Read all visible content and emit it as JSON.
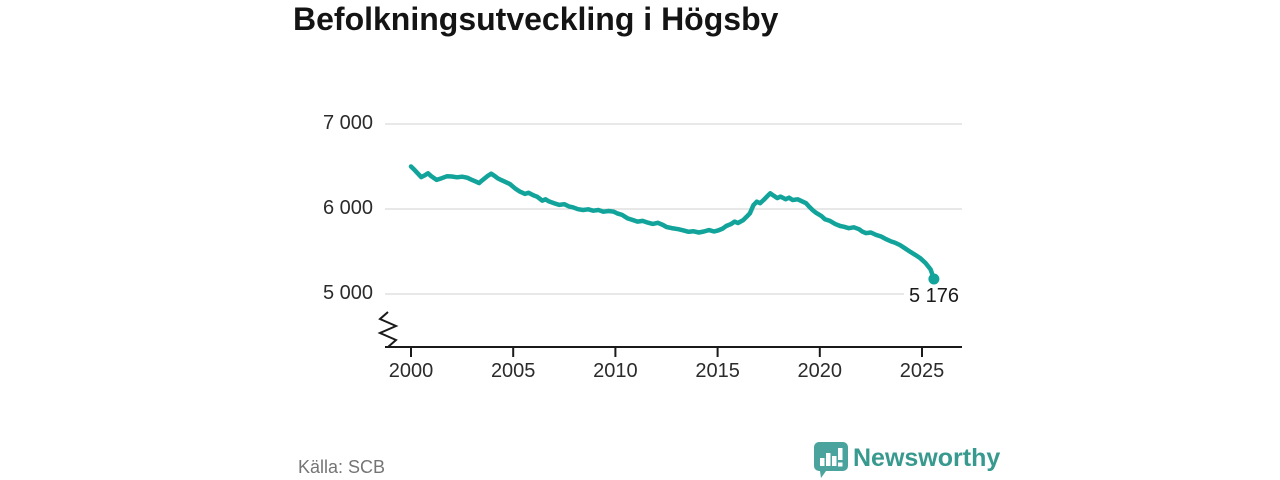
{
  "title": "Befolkningsutveckling i Högsby",
  "footer": {
    "source": "Källa: SCB",
    "brand": "Newsworthy"
  },
  "colors": {
    "line": "#12a49b",
    "end_dot": "#12a49b",
    "grid": "#d9d9d9",
    "axis": "#1a1a1a",
    "tick_label": "#2b2b2b",
    "source_text": "#757575",
    "brand_text": "#38998f",
    "logo_bubble": "#4aa39c"
  },
  "chart_data": {
    "type": "line",
    "title": "Befolkningsutveckling i Högsby",
    "xlabel": "",
    "ylabel": "",
    "legend": "none",
    "grid": "horizontal",
    "axis_break_bottom": true,
    "xlim": [
      1998.7,
      2026.9
    ],
    "ylim_visible": [
      4800,
      7000
    ],
    "x_ticks": [
      {
        "year": 2000,
        "label": "2000"
      },
      {
        "year": 2005,
        "label": "2005"
      },
      {
        "year": 2010,
        "label": "2010"
      },
      {
        "year": 2015,
        "label": "2015"
      },
      {
        "year": 2020,
        "label": "2020"
      },
      {
        "year": 2025,
        "label": "2025"
      }
    ],
    "y_ticks": [
      {
        "value": 7000,
        "label": "7 000"
      },
      {
        "value": 6000,
        "label": "6 000"
      },
      {
        "value": 5000,
        "label": "5 000"
      }
    ],
    "end_label": "5 176",
    "end_value": 5176,
    "series": [
      {
        "name": "Befolkning i Högsby",
        "points": [
          [
            2000.0,
            6500
          ],
          [
            2000.17,
            6460
          ],
          [
            2000.33,
            6420
          ],
          [
            2000.5,
            6375
          ],
          [
            2000.67,
            6395
          ],
          [
            2000.83,
            6420
          ],
          [
            2001.0,
            6385
          ],
          [
            2001.25,
            6342
          ],
          [
            2001.5,
            6362
          ],
          [
            2001.75,
            6385
          ],
          [
            2002.0,
            6382
          ],
          [
            2002.25,
            6373
          ],
          [
            2002.5,
            6380
          ],
          [
            2002.75,
            6368
          ],
          [
            2003.0,
            6340
          ],
          [
            2003.17,
            6322
          ],
          [
            2003.33,
            6305
          ],
          [
            2003.5,
            6340
          ],
          [
            2003.75,
            6388
          ],
          [
            2003.92,
            6415
          ],
          [
            2004.08,
            6390
          ],
          [
            2004.25,
            6360
          ],
          [
            2004.42,
            6340
          ],
          [
            2004.58,
            6322
          ],
          [
            2004.83,
            6295
          ],
          [
            2005.08,
            6245
          ],
          [
            2005.33,
            6205
          ],
          [
            2005.58,
            6178
          ],
          [
            2005.75,
            6192
          ],
          [
            2006.0,
            6160
          ],
          [
            2006.17,
            6145
          ],
          [
            2006.33,
            6115
          ],
          [
            2006.42,
            6098
          ],
          [
            2006.58,
            6114
          ],
          [
            2006.75,
            6090
          ],
          [
            2007.0,
            6068
          ],
          [
            2007.25,
            6048
          ],
          [
            2007.5,
            6056
          ],
          [
            2007.75,
            6028
          ],
          [
            2007.92,
            6020
          ],
          [
            2008.17,
            5998
          ],
          [
            2008.42,
            5988
          ],
          [
            2008.67,
            5996
          ],
          [
            2008.92,
            5980
          ],
          [
            2009.17,
            5988
          ],
          [
            2009.42,
            5968
          ],
          [
            2009.67,
            5976
          ],
          [
            2009.92,
            5968
          ],
          [
            2010.08,
            5950
          ],
          [
            2010.33,
            5930
          ],
          [
            2010.58,
            5892
          ],
          [
            2010.83,
            5872
          ],
          [
            2011.08,
            5852
          ],
          [
            2011.33,
            5860
          ],
          [
            2011.58,
            5840
          ],
          [
            2011.83,
            5825
          ],
          [
            2012.08,
            5838
          ],
          [
            2012.33,
            5812
          ],
          [
            2012.5,
            5788
          ],
          [
            2012.75,
            5775
          ],
          [
            2013.08,
            5762
          ],
          [
            2013.33,
            5748
          ],
          [
            2013.58,
            5732
          ],
          [
            2013.83,
            5738
          ],
          [
            2014.08,
            5724
          ],
          [
            2014.33,
            5735
          ],
          [
            2014.58,
            5752
          ],
          [
            2014.83,
            5735
          ],
          [
            2015.0,
            5746
          ],
          [
            2015.25,
            5770
          ],
          [
            2015.42,
            5800
          ],
          [
            2015.67,
            5825
          ],
          [
            2015.83,
            5852
          ],
          [
            2016.0,
            5835
          ],
          [
            2016.25,
            5870
          ],
          [
            2016.42,
            5908
          ],
          [
            2016.58,
            5950
          ],
          [
            2016.75,
            6045
          ],
          [
            2016.92,
            6086
          ],
          [
            2017.08,
            6068
          ],
          [
            2017.25,
            6106
          ],
          [
            2017.42,
            6148
          ],
          [
            2017.58,
            6185
          ],
          [
            2017.75,
            6155
          ],
          [
            2017.92,
            6128
          ],
          [
            2018.08,
            6146
          ],
          [
            2018.33,
            6115
          ],
          [
            2018.5,
            6133
          ],
          [
            2018.67,
            6106
          ],
          [
            2018.92,
            6114
          ],
          [
            2019.17,
            6086
          ],
          [
            2019.33,
            6068
          ],
          [
            2019.5,
            6022
          ],
          [
            2019.67,
            5982
          ],
          [
            2019.83,
            5954
          ],
          [
            2020.08,
            5918
          ],
          [
            2020.25,
            5880
          ],
          [
            2020.5,
            5860
          ],
          [
            2020.75,
            5825
          ],
          [
            2021.0,
            5800
          ],
          [
            2021.17,
            5792
          ],
          [
            2021.42,
            5774
          ],
          [
            2021.67,
            5785
          ],
          [
            2021.92,
            5762
          ],
          [
            2022.08,
            5734
          ],
          [
            2022.25,
            5716
          ],
          [
            2022.5,
            5723
          ],
          [
            2022.75,
            5695
          ],
          [
            2023.0,
            5676
          ],
          [
            2023.25,
            5645
          ],
          [
            2023.5,
            5618
          ],
          [
            2023.67,
            5605
          ],
          [
            2023.92,
            5576
          ],
          [
            2024.17,
            5538
          ],
          [
            2024.42,
            5498
          ],
          [
            2024.67,
            5460
          ],
          [
            2024.92,
            5420
          ],
          [
            2025.17,
            5365
          ],
          [
            2025.42,
            5290
          ],
          [
            2025.58,
            5176
          ]
        ]
      }
    ]
  }
}
